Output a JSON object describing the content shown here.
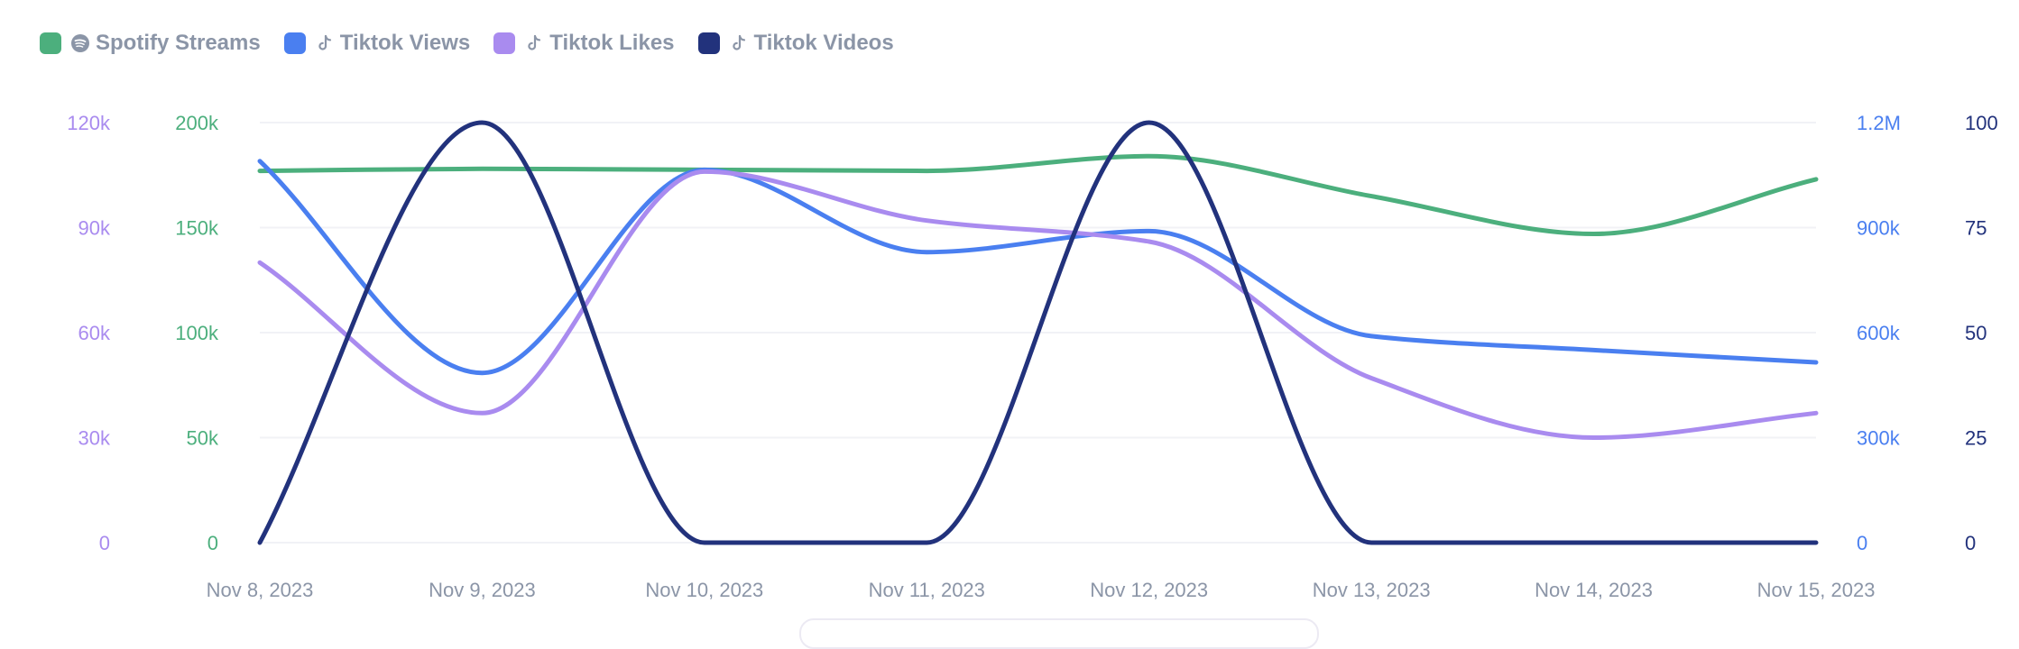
{
  "legend": {
    "items": [
      {
        "label": "Spotify Streams",
        "color": "#4caf7d",
        "icon": "spotify-icon"
      },
      {
        "label": "Tiktok Views",
        "color": "#4a7ff0",
        "icon": "tiktok-icon"
      },
      {
        "label": "Tiktok Likes",
        "color": "#a98bef",
        "icon": "tiktok-icon"
      },
      {
        "label": "Tiktok Videos",
        "color": "#22327c",
        "icon": "tiktok-icon"
      }
    ]
  },
  "chart_data": {
    "type": "line",
    "title": "",
    "xlabel": "",
    "categories": [
      "Nov 8, 2023",
      "Nov 9, 2023",
      "Nov 10, 2023",
      "Nov 11, 2023",
      "Nov 12, 2023",
      "Nov 13, 2023",
      "Nov 14, 2023",
      "Nov 15, 2023"
    ],
    "grid": true,
    "legend_position": "top-left",
    "axes": {
      "likes": {
        "position": "left-outer",
        "color": "#a98bef",
        "ylim": [
          0,
          120000
        ],
        "ticks": [
          "0",
          "30k",
          "60k",
          "90k",
          "120k"
        ],
        "tick_values": [
          0,
          30000,
          60000,
          90000,
          120000
        ]
      },
      "streams": {
        "position": "left-inner",
        "color": "#4caf7d",
        "ylim": [
          0,
          200000
        ],
        "ticks": [
          "0",
          "50k",
          "100k",
          "150k",
          "200k"
        ],
        "tick_values": [
          0,
          50000,
          100000,
          150000,
          200000
        ]
      },
      "views": {
        "position": "right-inner",
        "color": "#4a7ff0",
        "ylim": [
          0,
          1200000
        ],
        "ticks": [
          "0",
          "300k",
          "600k",
          "900k",
          "1.2M"
        ],
        "tick_values": [
          0,
          300000,
          600000,
          900000,
          1200000
        ]
      },
      "videos": {
        "position": "right-outer",
        "color": "#22327c",
        "ylim": [
          0,
          100
        ],
        "ticks": [
          "0",
          "25",
          "50",
          "75",
          "100"
        ],
        "tick_values": [
          0,
          25,
          50,
          75,
          100
        ]
      }
    },
    "series": [
      {
        "name": "Spotify Streams",
        "axis": "streams",
        "color": "#4caf7d",
        "values": [
          177000,
          178000,
          177500,
          177000,
          184000,
          165000,
          147000,
          173000
        ]
      },
      {
        "name": "Tiktok Views",
        "axis": "views",
        "color": "#4a7ff0",
        "values": [
          1090000,
          485000,
          1065000,
          830000,
          890000,
          590000,
          550000,
          515000
        ]
      },
      {
        "name": "Tiktok Likes",
        "axis": "likes",
        "color": "#a98bef",
        "values": [
          80000,
          37000,
          106000,
          92000,
          86000,
          47000,
          30000,
          37000
        ]
      },
      {
        "name": "Tiktok Videos",
        "axis": "videos",
        "color": "#22327c",
        "values": [
          0,
          100,
          0,
          0,
          100,
          0,
          0,
          0
        ]
      }
    ]
  }
}
